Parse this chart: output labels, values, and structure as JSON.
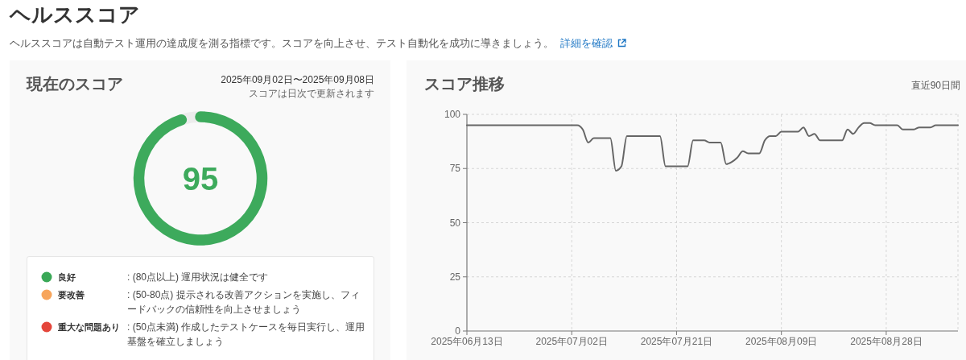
{
  "chart_data": [
    {
      "type": "other",
      "title": "ヘルススコア",
      "subtitle": "ヘルススコアは自動テスト運用の達成度を測る指標です。スコアを向上させ、テスト自動化を成功に導きましょう。",
      "annotations": [
        "詳細を確認"
      ]
    },
    {
      "type": "donut",
      "title": "現在のスコア",
      "subtitle": "2025年09月02日〜2025年09月08日",
      "categories": [
        null,
        null
      ],
      "values": [
        95,
        5
      ],
      "colors": [
        "#3daa5c",
        "#ececec"
      ],
      "value_labels": [
        "95",
        null
      ],
      "annotations": [
        "スコアは日次で更新されます",
        "良好",
        ": (80点以上) 運用状況は健全です",
        "要改善",
        ": (50-80点) 提示される改善アクションを実施し、フィードバックの信頼性を向上させましょう",
        "重大な問題あり",
        ": (50点未満) 作成したテストケースを毎日実行し、運用基盤を確立しましょう"
      ]
    },
    {
      "type": "line",
      "title": "スコア推移",
      "subtitle": "直近90日間",
      "categories": [
        "2025年06月13日",
        null,
        null,
        null,
        null,
        null,
        null,
        null,
        null,
        null,
        null,
        null,
        null,
        null,
        null,
        null,
        null,
        null,
        null,
        "2025年07月02日",
        null,
        null,
        null,
        null,
        null,
        null,
        null,
        null,
        null,
        null,
        null,
        null,
        null,
        null,
        null,
        null,
        null,
        null,
        "2025年07月21日",
        null,
        null,
        null,
        null,
        null,
        null,
        null,
        null,
        null,
        null,
        null,
        null,
        null,
        null,
        null,
        null,
        null,
        null,
        "2025年08月09日",
        null,
        null,
        null,
        null,
        null,
        null,
        null,
        null,
        null,
        null,
        null,
        null,
        null,
        null,
        null,
        null,
        null,
        null,
        "2025年08月28日",
        null,
        null,
        null,
        null,
        null,
        null,
        null,
        null,
        null,
        null,
        null,
        null,
        null
      ],
      "series": [
        {
          "color": "#666666",
          "values": [
            95,
            95,
            95,
            95,
            95,
            95,
            95,
            95,
            95,
            95,
            95,
            95,
            95,
            95,
            95,
            95,
            95,
            95,
            95,
            95,
            95,
            93,
            87,
            89,
            89,
            89,
            89,
            74,
            76,
            90,
            90,
            90,
            90,
            90,
            90,
            90,
            76,
            76,
            76,
            76,
            76,
            88,
            88,
            88,
            87,
            87,
            87,
            77,
            78,
            80,
            83,
            82,
            82,
            82,
            88,
            90,
            90,
            92,
            92,
            92,
            92,
            94,
            90,
            91,
            88,
            88,
            88,
            88,
            88,
            93,
            91,
            94,
            96,
            96,
            95,
            95,
            95,
            95,
            95,
            93,
            93,
            93,
            94,
            94,
            94,
            95,
            95,
            95,
            95,
            95
          ]
        }
      ],
      "ylim": [
        0,
        100
      ],
      "yticks": [
        0,
        25,
        50,
        75,
        100
      ],
      "grid": true
    }
  ]
}
